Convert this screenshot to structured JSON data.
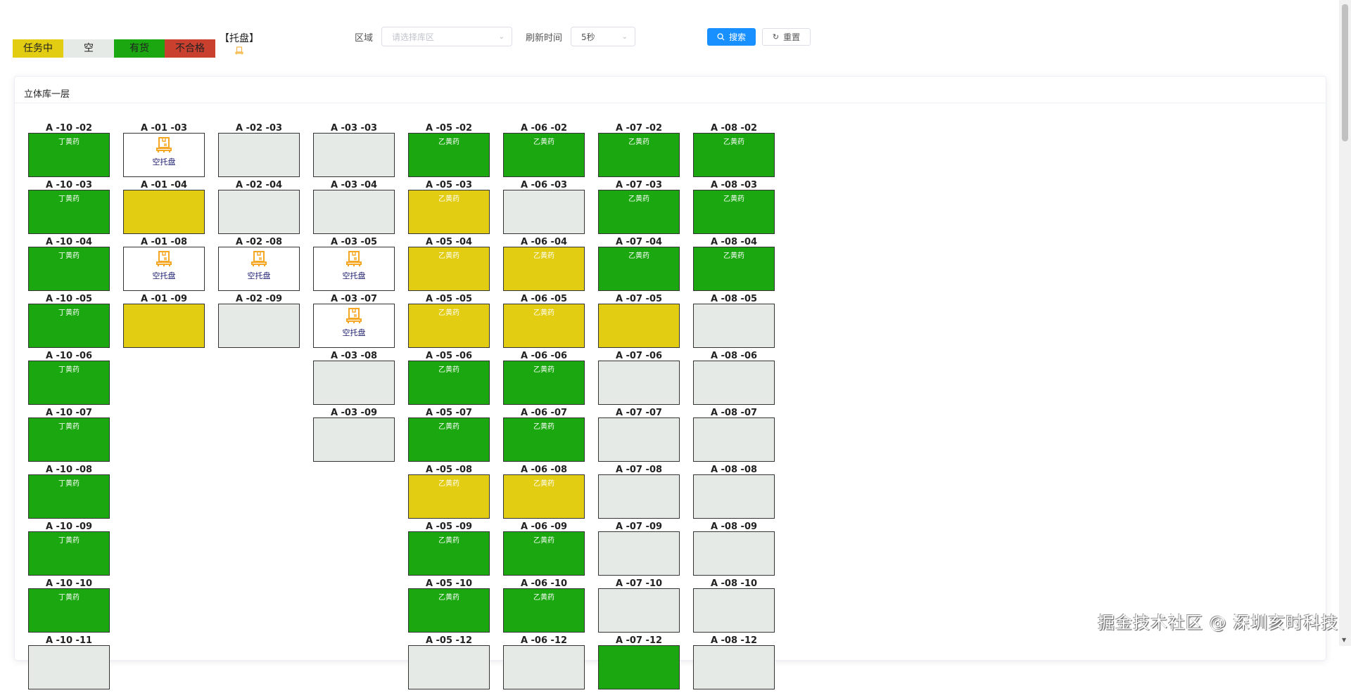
{
  "legend": [
    {
      "label": "任务中",
      "color": "#e2cd12"
    },
    {
      "label": "空",
      "color": "#e6eae6"
    },
    {
      "label": "有货",
      "color": "#1aa70f"
    },
    {
      "label": "不合格",
      "color": "#c9402f"
    }
  ],
  "pallet_legend": {
    "label": "【托盘】",
    "icon": "pallet-icon"
  },
  "filters": {
    "area_label": "区域",
    "area_placeholder": "请选择库区",
    "refresh_label": "刷新时间",
    "refresh_value": "5秒"
  },
  "buttons": {
    "search": "搜索",
    "reset": "重置",
    "accent": "#1890ff"
  },
  "card": {
    "title": "立体库一层"
  },
  "status_colors": {
    "full": "#1aa70f",
    "task": "#e2cd12",
    "empty": "#e6eae6",
    "pallet": "#ffffff"
  },
  "columns": [
    [
      {
        "code": "A -10 -02",
        "status": "full",
        "text": "丁黄药"
      },
      {
        "code": "A -10 -03",
        "status": "full",
        "text": "丁黄药"
      },
      {
        "code": "A -10 -04",
        "status": "full",
        "text": "丁黄药"
      },
      {
        "code": "A -10 -05",
        "status": "full",
        "text": "丁黄药"
      },
      {
        "code": "A -10 -06",
        "status": "full",
        "text": "丁黄药"
      },
      {
        "code": "A -10 -07",
        "status": "full",
        "text": "丁黄药"
      },
      {
        "code": "A -10 -08",
        "status": "full",
        "text": "丁黄药"
      },
      {
        "code": "A -10 -09",
        "status": "full",
        "text": "丁黄药"
      },
      {
        "code": "A -10 -10",
        "status": "full",
        "text": "丁黄药"
      },
      {
        "code": "A -10 -11",
        "status": "empty",
        "text": ""
      }
    ],
    [
      {
        "code": "A -01 -03",
        "status": "pallet",
        "text": "空托盘"
      },
      {
        "code": "A -01 -04",
        "status": "task",
        "text": ""
      },
      {
        "code": "A -01 -08",
        "status": "pallet",
        "text": "空托盘"
      },
      {
        "code": "A -01 -09",
        "status": "task",
        "text": ""
      }
    ],
    [
      {
        "code": "A -02 -03",
        "status": "empty",
        "text": ""
      },
      {
        "code": "A -02 -04",
        "status": "empty",
        "text": ""
      },
      {
        "code": "A -02 -08",
        "status": "pallet",
        "text": "空托盘"
      },
      {
        "code": "A -02 -09",
        "status": "empty",
        "text": ""
      }
    ],
    [
      {
        "code": "A -03 -03",
        "status": "empty",
        "text": ""
      },
      {
        "code": "A -03 -04",
        "status": "empty",
        "text": ""
      },
      {
        "code": "A -03 -05",
        "status": "pallet",
        "text": "空托盘"
      },
      {
        "code": "A -03 -07",
        "status": "pallet",
        "text": "空托盘"
      },
      {
        "code": "A -03 -08",
        "status": "empty",
        "text": ""
      },
      {
        "code": "A -03 -09",
        "status": "empty",
        "text": ""
      }
    ],
    [
      {
        "code": "A -05 -02",
        "status": "full",
        "text": "乙黄药"
      },
      {
        "code": "A -05 -03",
        "status": "task",
        "text": "乙黄药"
      },
      {
        "code": "A -05 -04",
        "status": "task",
        "text": "乙黄药"
      },
      {
        "code": "A -05 -05",
        "status": "task",
        "text": "乙黄药"
      },
      {
        "code": "A -05 -06",
        "status": "full",
        "text": "乙黄药"
      },
      {
        "code": "A -05 -07",
        "status": "full",
        "text": "乙黄药"
      },
      {
        "code": "A -05 -08",
        "status": "task",
        "text": "乙黄药"
      },
      {
        "code": "A -05 -09",
        "status": "full",
        "text": "乙黄药"
      },
      {
        "code": "A -05 -10",
        "status": "full",
        "text": "乙黄药"
      },
      {
        "code": "A -05 -12",
        "status": "empty",
        "text": ""
      }
    ],
    [
      {
        "code": "A -06 -02",
        "status": "full",
        "text": "乙黄药"
      },
      {
        "code": "A -06 -03",
        "status": "empty",
        "text": ""
      },
      {
        "code": "A -06 -04",
        "status": "task",
        "text": "乙黄药"
      },
      {
        "code": "A -06 -05",
        "status": "task",
        "text": "乙黄药"
      },
      {
        "code": "A -06 -06",
        "status": "full",
        "text": "乙黄药"
      },
      {
        "code": "A -06 -07",
        "status": "full",
        "text": "乙黄药"
      },
      {
        "code": "A -06 -08",
        "status": "task",
        "text": "乙黄药"
      },
      {
        "code": "A -06 -09",
        "status": "full",
        "text": "乙黄药"
      },
      {
        "code": "A -06 -10",
        "status": "full",
        "text": "乙黄药"
      },
      {
        "code": "A -06 -12",
        "status": "empty",
        "text": ""
      }
    ],
    [
      {
        "code": "A -07 -02",
        "status": "full",
        "text": "乙黄药"
      },
      {
        "code": "A -07 -03",
        "status": "full",
        "text": "乙黄药"
      },
      {
        "code": "A -07 -04",
        "status": "full",
        "text": "乙黄药"
      },
      {
        "code": "A -07 -05",
        "status": "task",
        "text": ""
      },
      {
        "code": "A -07 -06",
        "status": "empty",
        "text": ""
      },
      {
        "code": "A -07 -07",
        "status": "empty",
        "text": ""
      },
      {
        "code": "A -07 -08",
        "status": "empty",
        "text": ""
      },
      {
        "code": "A -07 -09",
        "status": "empty",
        "text": ""
      },
      {
        "code": "A -07 -10",
        "status": "empty",
        "text": ""
      },
      {
        "code": "A -07 -12",
        "status": "full",
        "text": ""
      }
    ],
    [
      {
        "code": "A -08 -02",
        "status": "full",
        "text": "乙黄药"
      },
      {
        "code": "A -08 -03",
        "status": "full",
        "text": "乙黄药"
      },
      {
        "code": "A -08 -04",
        "status": "full",
        "text": "乙黄药"
      },
      {
        "code": "A -08 -05",
        "status": "empty",
        "text": ""
      },
      {
        "code": "A -08 -06",
        "status": "empty",
        "text": ""
      },
      {
        "code": "A -08 -07",
        "status": "empty",
        "text": ""
      },
      {
        "code": "A -08 -08",
        "status": "empty",
        "text": ""
      },
      {
        "code": "A -08 -09",
        "status": "empty",
        "text": ""
      },
      {
        "code": "A -08 -10",
        "status": "empty",
        "text": ""
      },
      {
        "code": "A -08 -12",
        "status": "empty",
        "text": ""
      }
    ]
  ],
  "watermark": "掘金技术社区 @ 深圳亥时科技"
}
